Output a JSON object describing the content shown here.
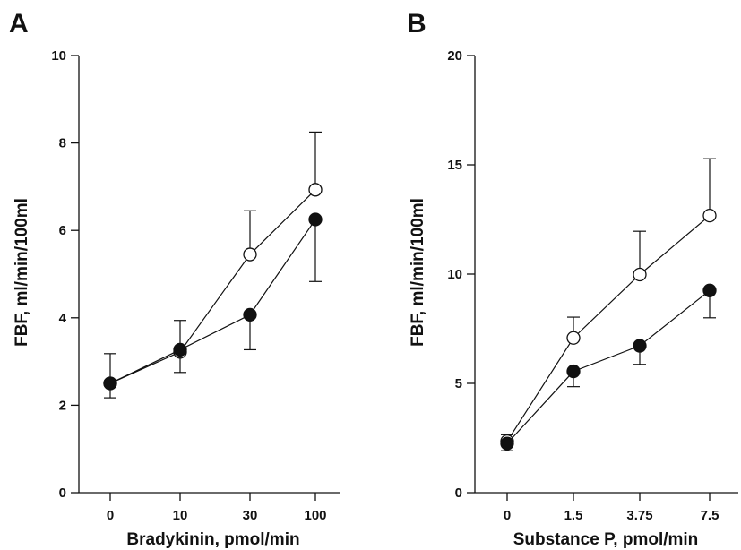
{
  "chart_data": [
    {
      "type": "line",
      "panel_label": "A",
      "xlabel": "Bradykinin, pmol/min",
      "ylabel": "FBF, ml/min/100ml",
      "categories": [
        "0",
        "10",
        "30",
        "100"
      ],
      "ylim": [
        0,
        10
      ],
      "yticks": [
        0,
        2,
        4,
        6,
        8,
        10
      ],
      "grid": false,
      "legend": "none",
      "series": [
        {
          "marker": "open-circle",
          "values": [
            2.5,
            3.22,
            5.45,
            6.93
          ],
          "error": [
            0.68,
            0.72,
            1.0,
            1.32
          ],
          "error_direction": "up"
        },
        {
          "marker": "filled-circle",
          "values": [
            2.5,
            3.27,
            4.07,
            6.25
          ],
          "error": [
            0.33,
            0.52,
            0.8,
            1.42
          ],
          "error_direction": "down"
        }
      ]
    },
    {
      "type": "line",
      "panel_label": "B",
      "xlabel": "Substance P, pmol/min",
      "ylabel": "FBF, ml/min/100ml",
      "categories": [
        "0",
        "1.5",
        "3.75",
        "7.5"
      ],
      "ylim": [
        0,
        20
      ],
      "yticks": [
        0,
        5,
        10,
        15,
        20
      ],
      "grid": false,
      "legend": "none",
      "series": [
        {
          "marker": "open-circle",
          "values": [
            2.35,
            7.08,
            9.98,
            12.68
          ],
          "error": [
            0.3,
            0.95,
            1.98,
            2.6
          ],
          "error_direction": "up"
        },
        {
          "marker": "filled-circle",
          "values": [
            2.25,
            5.55,
            6.72,
            9.25
          ],
          "error": [
            0.33,
            0.7,
            0.85,
            1.25
          ],
          "error_direction": "down"
        }
      ]
    }
  ]
}
